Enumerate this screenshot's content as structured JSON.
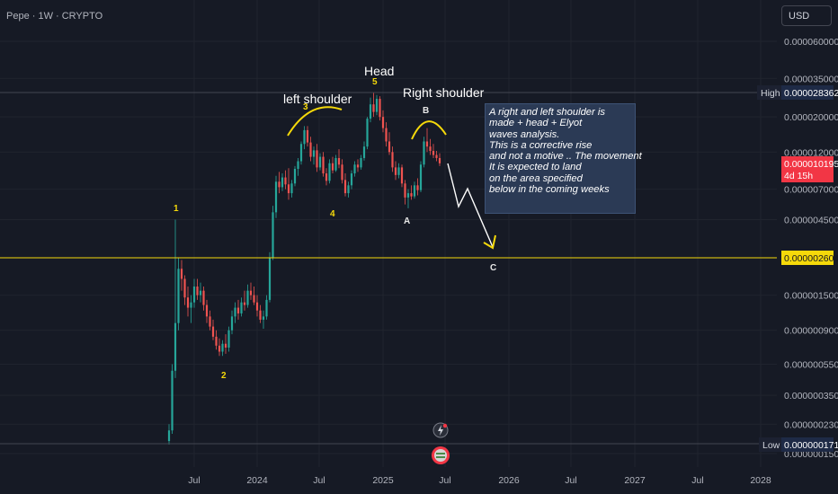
{
  "header": {
    "symbol_label": "Pepe · 1W · CRYPTO"
  },
  "currency_button": {
    "label": "USD"
  },
  "chart_data": {
    "type": "candlestick",
    "symbol": "Pepe",
    "interval": "1W",
    "exchange": "CRYPTO",
    "y_scale": "log",
    "y_ticks": [
      "0.000060000",
      "0.000035000",
      "0.000020000",
      "0.000012000",
      "0.000007000",
      "0.000004500",
      "0.000001500",
      "0.000000900",
      "0.000000550",
      "0.000000350",
      "0.000000230",
      "0.000000150"
    ],
    "x_ticks": [
      "Jul",
      "2024",
      "Jul",
      "2025",
      "Jul",
      "2026",
      "Jul",
      "2027",
      "Jul",
      "2028"
    ],
    "high": {
      "label": "High",
      "value": "0.000028362"
    },
    "low": {
      "label": "Low",
      "value": "0.000000171"
    },
    "last_price": {
      "value": "0.000010195",
      "countdown": "4d 15h"
    },
    "horizontal_line": {
      "value": "0.000002604",
      "color": "#f5d90a"
    },
    "ohlc": [
      {
        "o": 0.18,
        "h": 0.23,
        "l": 0.171,
        "c": 0.21
      },
      {
        "o": 0.21,
        "h": 0.55,
        "l": 0.2,
        "c": 0.5
      },
      {
        "o": 0.5,
        "h": 4.5,
        "l": 0.45,
        "c": 1.0
      },
      {
        "o": 1.0,
        "h": 2.6,
        "l": 0.9,
        "c": 2.2
      },
      {
        "o": 2.2,
        "h": 2.5,
        "l": 1.6,
        "c": 1.9
      },
      {
        "o": 1.9,
        "h": 2.0,
        "l": 1.3,
        "c": 1.45
      },
      {
        "o": 1.45,
        "h": 1.7,
        "l": 1.1,
        "c": 1.25
      },
      {
        "o": 1.25,
        "h": 1.5,
        "l": 1.0,
        "c": 1.35
      },
      {
        "o": 1.35,
        "h": 1.9,
        "l": 1.25,
        "c": 1.7
      },
      {
        "o": 1.7,
        "h": 1.9,
        "l": 1.4,
        "c": 1.5
      },
      {
        "o": 1.5,
        "h": 1.8,
        "l": 1.35,
        "c": 1.6
      },
      {
        "o": 1.6,
        "h": 1.7,
        "l": 1.2,
        "c": 1.3
      },
      {
        "o": 1.3,
        "h": 1.4,
        "l": 1.0,
        "c": 1.1
      },
      {
        "o": 1.1,
        "h": 1.2,
        "l": 0.9,
        "c": 0.95
      },
      {
        "o": 0.95,
        "h": 1.05,
        "l": 0.78,
        "c": 0.82
      },
      {
        "o": 0.82,
        "h": 0.9,
        "l": 0.68,
        "c": 0.72
      },
      {
        "o": 0.72,
        "h": 0.8,
        "l": 0.62,
        "c": 0.66
      },
      {
        "o": 0.66,
        "h": 0.78,
        "l": 0.62,
        "c": 0.74
      },
      {
        "o": 0.74,
        "h": 0.85,
        "l": 0.64,
        "c": 0.7
      },
      {
        "o": 0.7,
        "h": 0.95,
        "l": 0.66,
        "c": 0.9
      },
      {
        "o": 0.9,
        "h": 1.2,
        "l": 0.85,
        "c": 1.1
      },
      {
        "o": 1.1,
        "h": 1.35,
        "l": 1.0,
        "c": 1.25
      },
      {
        "o": 1.25,
        "h": 1.4,
        "l": 1.05,
        "c": 1.15
      },
      {
        "o": 1.15,
        "h": 1.45,
        "l": 1.1,
        "c": 1.35
      },
      {
        "o": 1.35,
        "h": 1.6,
        "l": 1.2,
        "c": 1.3
      },
      {
        "o": 1.3,
        "h": 1.75,
        "l": 1.25,
        "c": 1.6
      },
      {
        "o": 1.6,
        "h": 1.8,
        "l": 1.4,
        "c": 1.5
      },
      {
        "o": 1.5,
        "h": 1.7,
        "l": 1.3,
        "c": 1.35
      },
      {
        "o": 1.35,
        "h": 1.5,
        "l": 1.1,
        "c": 1.2
      },
      {
        "o": 1.2,
        "h": 1.3,
        "l": 1.0,
        "c": 1.05
      },
      {
        "o": 1.05,
        "h": 1.2,
        "l": 0.92,
        "c": 1.1
      },
      {
        "o": 1.1,
        "h": 1.5,
        "l": 1.05,
        "c": 1.4
      },
      {
        "o": 1.4,
        "h": 2.8,
        "l": 1.35,
        "c": 2.6
      },
      {
        "o": 2.6,
        "h": 5.5,
        "l": 2.5,
        "c": 5.0
      },
      {
        "o": 5.0,
        "h": 8.5,
        "l": 4.6,
        "c": 7.8
      },
      {
        "o": 7.8,
        "h": 9.0,
        "l": 6.6,
        "c": 7.2
      },
      {
        "o": 7.2,
        "h": 8.8,
        "l": 6.8,
        "c": 8.3
      },
      {
        "o": 8.3,
        "h": 9.2,
        "l": 7.0,
        "c": 7.5
      },
      {
        "o": 7.5,
        "h": 9.5,
        "l": 6.0,
        "c": 6.6
      },
      {
        "o": 6.6,
        "h": 8.0,
        "l": 6.2,
        "c": 7.6
      },
      {
        "o": 7.6,
        "h": 9.8,
        "l": 7.3,
        "c": 9.4
      },
      {
        "o": 9.4,
        "h": 11.0,
        "l": 8.5,
        "c": 10.5
      },
      {
        "o": 10.5,
        "h": 14.0,
        "l": 10.0,
        "c": 13.5
      },
      {
        "o": 13.5,
        "h": 17.5,
        "l": 12.5,
        "c": 16.5
      },
      {
        "o": 16.5,
        "h": 17.5,
        "l": 13.0,
        "c": 13.8
      },
      {
        "o": 13.8,
        "h": 15.0,
        "l": 10.5,
        "c": 11.2
      },
      {
        "o": 11.2,
        "h": 13.0,
        "l": 10.0,
        "c": 12.3
      },
      {
        "o": 12.3,
        "h": 13.5,
        "l": 9.0,
        "c": 9.6
      },
      {
        "o": 9.6,
        "h": 11.8,
        "l": 9.2,
        "c": 11.2
      },
      {
        "o": 11.2,
        "h": 12.0,
        "l": 8.4,
        "c": 8.8
      },
      {
        "o": 8.8,
        "h": 9.5,
        "l": 7.4,
        "c": 7.9
      },
      {
        "o": 7.9,
        "h": 10.8,
        "l": 7.6,
        "c": 10.2
      },
      {
        "o": 10.2,
        "h": 11.2,
        "l": 8.8,
        "c": 9.2
      },
      {
        "o": 9.2,
        "h": 11.5,
        "l": 9.0,
        "c": 11.0
      },
      {
        "o": 11.0,
        "h": 12.5,
        "l": 9.5,
        "c": 10.0
      },
      {
        "o": 10.0,
        "h": 10.8,
        "l": 7.6,
        "c": 8.0
      },
      {
        "o": 8.0,
        "h": 8.8,
        "l": 6.3,
        "c": 6.6
      },
      {
        "o": 6.6,
        "h": 7.8,
        "l": 6.2,
        "c": 7.4
      },
      {
        "o": 7.4,
        "h": 9.2,
        "l": 7.0,
        "c": 8.8
      },
      {
        "o": 8.8,
        "h": 10.5,
        "l": 8.4,
        "c": 10.0
      },
      {
        "o": 10.0,
        "h": 10.8,
        "l": 9.0,
        "c": 9.6
      },
      {
        "o": 9.6,
        "h": 11.5,
        "l": 9.3,
        "c": 11.0
      },
      {
        "o": 11.0,
        "h": 14.0,
        "l": 10.6,
        "c": 13.0
      },
      {
        "o": 13.0,
        "h": 20.0,
        "l": 12.5,
        "c": 19.5
      },
      {
        "o": 19.5,
        "h": 26.5,
        "l": 18.5,
        "c": 24.0
      },
      {
        "o": 24.0,
        "h": 28.362,
        "l": 20.0,
        "c": 21.5
      },
      {
        "o": 21.5,
        "h": 27.5,
        "l": 20.5,
        "c": 26.0
      },
      {
        "o": 26.0,
        "h": 27.0,
        "l": 19.0,
        "c": 20.0
      },
      {
        "o": 20.0,
        "h": 22.0,
        "l": 16.0,
        "c": 17.0
      },
      {
        "o": 17.0,
        "h": 18.5,
        "l": 13.0,
        "c": 14.0
      },
      {
        "o": 14.0,
        "h": 16.0,
        "l": 11.5,
        "c": 12.0
      },
      {
        "o": 12.0,
        "h": 13.0,
        "l": 9.0,
        "c": 9.6
      },
      {
        "o": 9.6,
        "h": 10.5,
        "l": 8.0,
        "c": 8.6
      },
      {
        "o": 8.6,
        "h": 10.2,
        "l": 8.2,
        "c": 9.6
      },
      {
        "o": 9.6,
        "h": 10.0,
        "l": 7.2,
        "c": 7.6
      },
      {
        "o": 7.6,
        "h": 8.0,
        "l": 5.6,
        "c": 6.2
      },
      {
        "o": 6.2,
        "h": 7.0,
        "l": 5.3,
        "c": 6.6
      },
      {
        "o": 6.6,
        "h": 7.4,
        "l": 6.0,
        "c": 6.3
      },
      {
        "o": 6.3,
        "h": 7.8,
        "l": 6.1,
        "c": 7.4
      },
      {
        "o": 7.4,
        "h": 8.2,
        "l": 6.4,
        "c": 6.9
      },
      {
        "o": 6.9,
        "h": 10.5,
        "l": 6.7,
        "c": 10.0
      },
      {
        "o": 10.0,
        "h": 15.0,
        "l": 9.6,
        "c": 14.0
      },
      {
        "o": 14.0,
        "h": 17.0,
        "l": 12.0,
        "c": 13.0
      },
      {
        "o": 13.0,
        "h": 14.5,
        "l": 11.5,
        "c": 12.2
      },
      {
        "o": 12.2,
        "h": 13.5,
        "l": 11.0,
        "c": 11.5
      },
      {
        "o": 11.5,
        "h": 12.2,
        "l": 10.5,
        "c": 11.0
      },
      {
        "o": 11.0,
        "h": 11.8,
        "l": 9.8,
        "c": 10.195
      }
    ],
    "annotations": [
      {
        "text": "Head",
        "kind": "heading"
      },
      {
        "text": "left shoulder",
        "kind": "heading"
      },
      {
        "text": "Right shoulder",
        "kind": "heading"
      }
    ],
    "wave_labels": [
      {
        "text": "1",
        "color": "yellow"
      },
      {
        "text": "2",
        "color": "yellow"
      },
      {
        "text": "3",
        "color": "yellow"
      },
      {
        "text": "4",
        "color": "yellow"
      },
      {
        "text": "5",
        "color": "yellow"
      },
      {
        "text": "A",
        "color": "white"
      },
      {
        "text": "B",
        "color": "white"
      },
      {
        "text": "C",
        "color": "white"
      }
    ],
    "note_lines": [
      "A right and left shoulder is",
      "made + head + Elyot",
      "waves analysis.",
      "This is a corrective rise",
      " and not a motive .. The movement",
      "It is expected to land",
      " on the area specified",
      " below in the coming weeks"
    ],
    "colors": {
      "up": "#26a69a",
      "down": "#ef5350",
      "background": "#161a25",
      "grid": "#20242e",
      "annotation": "#f5d90a",
      "note_bg": "#2b3a55",
      "last_price_bg": "#f23645"
    }
  }
}
